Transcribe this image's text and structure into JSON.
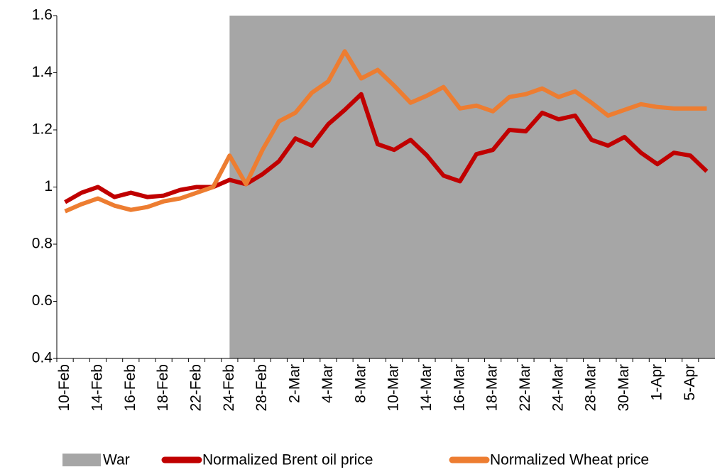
{
  "chart_data": {
    "type": "line",
    "categories": [
      "10-Feb",
      null,
      "14-Feb",
      null,
      "16-Feb",
      null,
      "18-Feb",
      null,
      "22-Feb",
      null,
      "24-Feb",
      null,
      "28-Feb",
      null,
      "2-Mar",
      null,
      "4-Mar",
      null,
      "8-Mar",
      null,
      "10-Mar",
      null,
      "14-Mar",
      null,
      "16-Mar",
      null,
      "18-Mar",
      null,
      "22-Mar",
      null,
      "24-Mar",
      null,
      "28-Mar",
      null,
      "30-Mar",
      null,
      "1-Apr",
      null,
      "5-Apr",
      null
    ],
    "series": [
      {
        "name": "War",
        "type": "area",
        "color": "#a6a6a6",
        "values": [
          null,
          null,
          null,
          null,
          null,
          null,
          null,
          null,
          null,
          null,
          1.6,
          1.6,
          1.6,
          1.6,
          1.6,
          1.6,
          1.6,
          1.6,
          1.6,
          1.6,
          1.6,
          1.6,
          1.6,
          1.6,
          1.6,
          1.6,
          1.6,
          1.6,
          1.6,
          1.6,
          1.6,
          1.6,
          1.6,
          1.6,
          1.6,
          1.6,
          1.6,
          1.6,
          1.6,
          1.6
        ]
      },
      {
        "name": "Normalized Brent oil price",
        "type": "line",
        "color": "#c00000",
        "values": [
          0.947,
          0.98,
          1.0,
          0.965,
          0.98,
          0.965,
          0.97,
          0.99,
          1.0,
          1.0,
          1.025,
          1.01,
          1.045,
          1.09,
          1.17,
          1.145,
          1.22,
          1.27,
          1.325,
          1.15,
          1.13,
          1.165,
          1.11,
          1.04,
          1.02,
          1.115,
          1.13,
          1.2,
          1.195,
          1.26,
          1.237,
          1.25,
          1.165,
          1.145,
          1.175,
          1.12,
          1.08,
          1.12,
          1.11,
          1.055
        ]
      },
      {
        "name": "Normalized Wheat price",
        "type": "line",
        "color": "#ed7d31",
        "values": [
          0.915,
          0.94,
          0.96,
          0.935,
          0.92,
          0.93,
          0.95,
          0.96,
          0.98,
          1.0,
          1.11,
          1.01,
          1.13,
          1.23,
          1.26,
          1.33,
          1.37,
          1.475,
          1.38,
          1.41,
          1.355,
          1.295,
          1.32,
          1.35,
          1.275,
          1.285,
          1.265,
          1.315,
          1.325,
          1.345,
          1.315,
          1.335,
          1.295,
          1.25,
          1.27,
          1.29,
          1.28,
          1.275,
          1.275,
          1.275
        ]
      }
    ],
    "ylim": [
      0.4,
      1.6
    ],
    "yticks": [
      0.4,
      0.6,
      0.8,
      1,
      1.2,
      1.4,
      1.6
    ],
    "legend": "bottom"
  }
}
